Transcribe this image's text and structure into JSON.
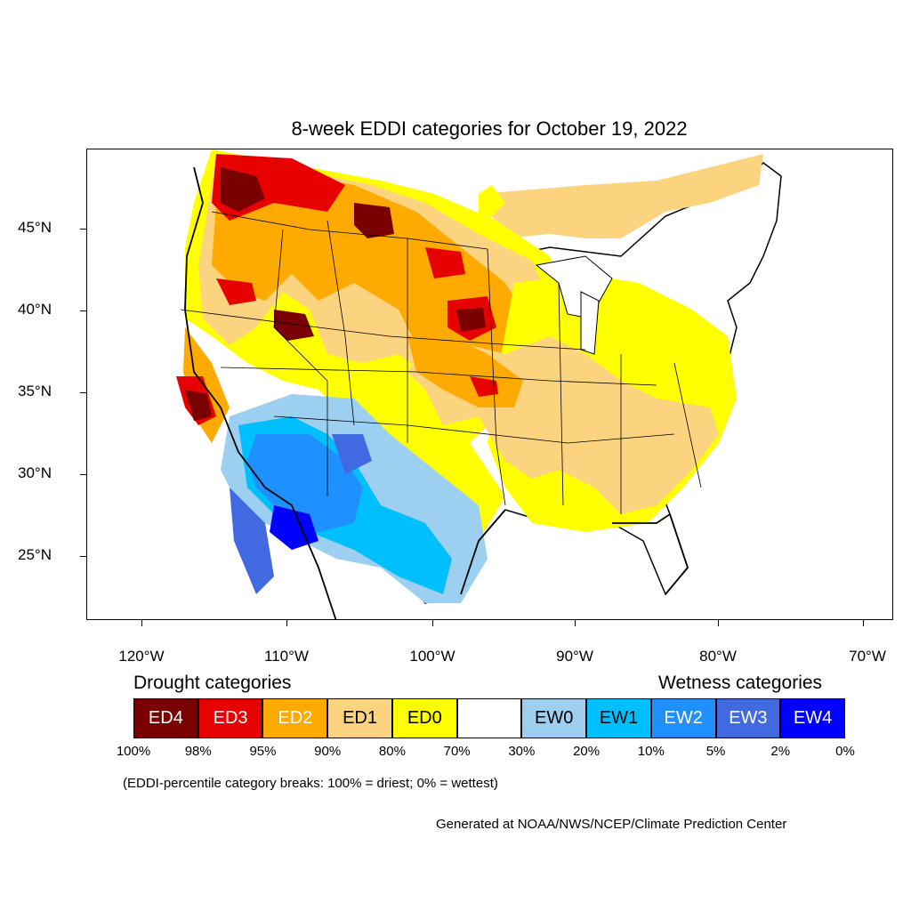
{
  "title": "8-week EDDI categories for October 19, 2022",
  "axes": {
    "y_ticks": [
      "45°N",
      "40°N",
      "35°N",
      "30°N",
      "25°N"
    ],
    "x_ticks": [
      "120°W",
      "110°W",
      "100°W",
      "90°W",
      "80°W",
      "70°W"
    ]
  },
  "legend": {
    "drought_heading": "Drought categories",
    "wetness_heading": "Wetness categories",
    "categories": [
      {
        "label": "ED4",
        "color": "#7a0000",
        "text_color": "#ffffff"
      },
      {
        "label": "ED3",
        "color": "#e60000",
        "text_color": "#ffffff"
      },
      {
        "label": "ED2",
        "color": "#ffaa00",
        "text_color": "#ffffff"
      },
      {
        "label": "ED1",
        "color": "#fcd37f",
        "text_color": "#000000"
      },
      {
        "label": "ED0",
        "color": "#ffff00",
        "text_color": "#000000"
      },
      {
        "label": "",
        "color": "#ffffff",
        "text_color": "#000000"
      },
      {
        "label": "EW0",
        "color": "#9ccff0",
        "text_color": "#000000"
      },
      {
        "label": "EW1",
        "color": "#00bfff",
        "text_color": "#000000"
      },
      {
        "label": "EW2",
        "color": "#1e90ff",
        "text_color": "#ffffff"
      },
      {
        "label": "EW3",
        "color": "#4169e1",
        "text_color": "#ffffff"
      },
      {
        "label": "EW4",
        "color": "#0000ff",
        "text_color": "#ffffff"
      }
    ],
    "breaks": [
      "100%",
      "98%",
      "95%",
      "90%",
      "80%",
      "70%",
      "30%",
      "20%",
      "10%",
      "5%",
      "2%",
      "0%"
    ],
    "note": "(EDDI-percentile category breaks: 100% = driest; 0% = wettest)"
  },
  "credit": "Generated at NOAA/NWS/NCEP/Climate Prediction Center"
}
